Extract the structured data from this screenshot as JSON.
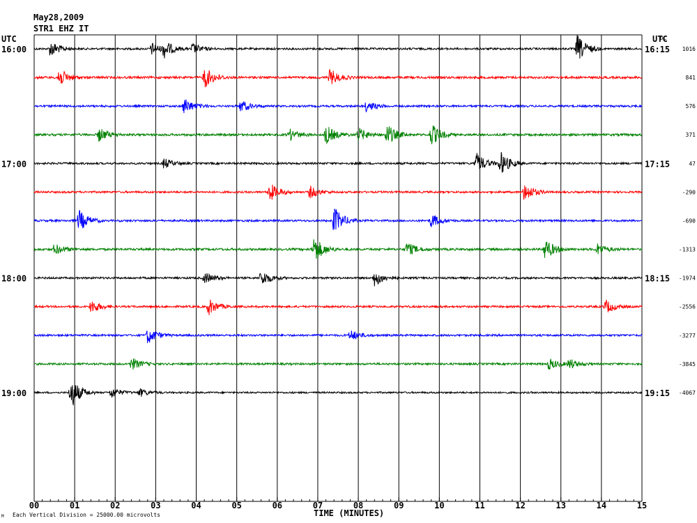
{
  "header": {
    "date": "May28,2009",
    "station": "STR1 EHZ IT",
    "utc_left": "UTC",
    "utc_right": "UTC",
    "dc_label": "DC"
  },
  "footer": {
    "scale_note": "Each Vertical Division = 25000.00 microvolts",
    "corner_mark": "M"
  },
  "chart_data": {
    "type": "line",
    "title": "May28,2009",
    "subtitle": "STR1 EHZ IT",
    "xlabel": "TIME (MINUTES)",
    "ylabel": "",
    "xlim": [
      0,
      15
    ],
    "x_ticks": [
      "00",
      "01",
      "02",
      "03",
      "04",
      "05",
      "06",
      "07",
      "08",
      "09",
      "10",
      "11",
      "12",
      "13",
      "14",
      "15"
    ],
    "grid": true,
    "left_time_labels": [
      {
        "row": 0,
        "text": "16:00"
      },
      {
        "row": 4,
        "text": "17:00"
      },
      {
        "row": 8,
        "text": "18:00"
      },
      {
        "row": 12,
        "text": "19:00"
      }
    ],
    "right_time_labels": [
      {
        "row": 0,
        "text": "16:15"
      },
      {
        "row": 4,
        "text": "17:15"
      },
      {
        "row": 8,
        "text": "18:15"
      },
      {
        "row": 12,
        "text": "19:15"
      }
    ],
    "trace_colors": [
      "#000000",
      "#ff0000",
      "#0000ff",
      "#008000"
    ],
    "series": [
      {
        "row": 0,
        "dc": "1016",
        "noise": 0.35,
        "events": [
          [
            0.4,
            3.0
          ],
          [
            2.9,
            2.2
          ],
          [
            3.2,
            3.0
          ],
          [
            3.9,
            2.0
          ],
          [
            13.4,
            5.0
          ]
        ]
      },
      {
        "row": 1,
        "dc": "841",
        "noise": 0.4,
        "events": [
          [
            0.6,
            3.5
          ],
          [
            4.2,
            4.0
          ],
          [
            7.3,
            3.0
          ]
        ]
      },
      {
        "row": 2,
        "dc": "576",
        "noise": 0.35,
        "events": [
          [
            3.7,
            3.0
          ],
          [
            5.1,
            2.2
          ],
          [
            8.2,
            2.0
          ]
        ]
      },
      {
        "row": 3,
        "dc": "371",
        "noise": 0.4,
        "events": [
          [
            1.6,
            2.5
          ],
          [
            6.3,
            2.0
          ],
          [
            7.2,
            3.5
          ],
          [
            8.0,
            2.5
          ],
          [
            8.7,
            4.0
          ],
          [
            9.8,
            4.0
          ]
        ]
      },
      {
        "row": 4,
        "dc": "47",
        "noise": 0.35,
        "events": [
          [
            3.2,
            1.8
          ],
          [
            10.9,
            4.0
          ],
          [
            11.5,
            4.5
          ]
        ]
      },
      {
        "row": 5,
        "dc": "-290",
        "noise": 0.35,
        "events": [
          [
            5.8,
            3.5
          ],
          [
            6.8,
            2.2
          ],
          [
            12.1,
            3.5
          ]
        ]
      },
      {
        "row": 6,
        "dc": "-690",
        "noise": 0.35,
        "events": [
          [
            1.1,
            4.0
          ],
          [
            7.4,
            5.0
          ],
          [
            9.8,
            2.5
          ]
        ]
      },
      {
        "row": 7,
        "dc": "-1313",
        "noise": 0.4,
        "events": [
          [
            0.5,
            2.0
          ],
          [
            6.9,
            5.0
          ],
          [
            9.2,
            2.5
          ],
          [
            12.6,
            4.0
          ],
          [
            13.9,
            2.0
          ]
        ]
      },
      {
        "row": 8,
        "dc": "-1974",
        "noise": 0.35,
        "events": [
          [
            4.2,
            2.0
          ],
          [
            5.6,
            3.0
          ],
          [
            8.4,
            3.0
          ]
        ]
      },
      {
        "row": 9,
        "dc": "-2556",
        "noise": 0.35,
        "events": [
          [
            1.4,
            2.5
          ],
          [
            4.3,
            3.0
          ],
          [
            14.1,
            2.5
          ]
        ]
      },
      {
        "row": 10,
        "dc": "-3277",
        "noise": 0.35,
        "events": [
          [
            2.8,
            3.0
          ],
          [
            7.8,
            2.0
          ]
        ]
      },
      {
        "row": 11,
        "dc": "-3845",
        "noise": 0.35,
        "events": [
          [
            2.4,
            2.2
          ],
          [
            12.7,
            2.0
          ],
          [
            13.2,
            1.8
          ]
        ]
      },
      {
        "row": 12,
        "dc": "-4067",
        "noise": 0.3,
        "events": [
          [
            0.9,
            6.0
          ],
          [
            1.9,
            2.0
          ],
          [
            2.6,
            1.5
          ]
        ]
      }
    ]
  }
}
